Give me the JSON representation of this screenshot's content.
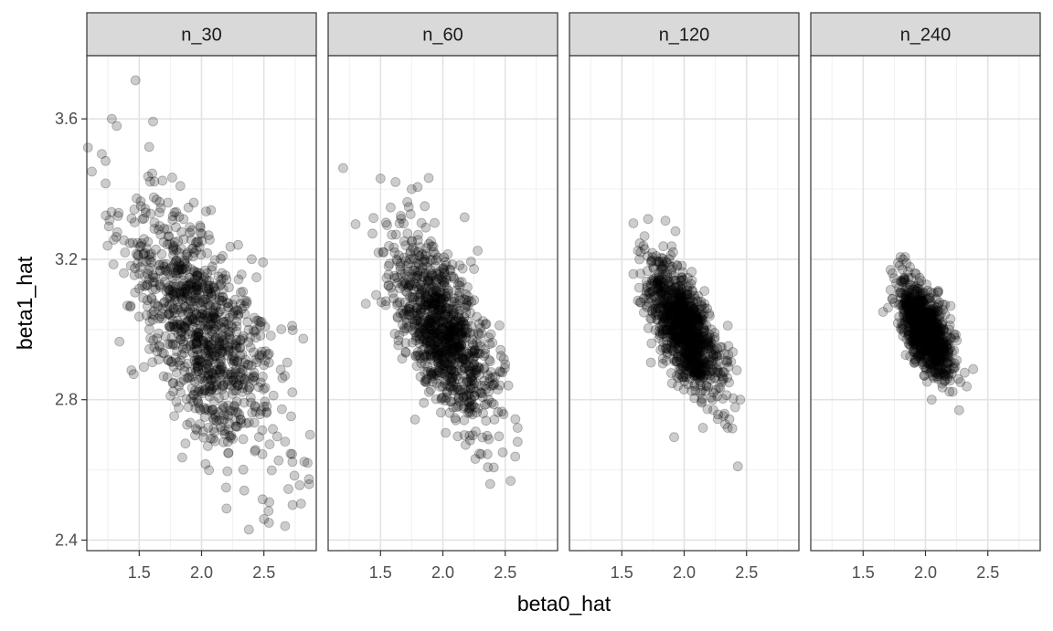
{
  "chart_data": {
    "type": "scatter",
    "xlabel": "beta0_hat",
    "ylabel": "beta1_hat",
    "xlim": [
      1.08,
      2.92
    ],
    "ylim": [
      2.37,
      3.78
    ],
    "x_ticks": [
      1.5,
      2.0,
      2.5
    ],
    "x_tick_labels": [
      "1.5",
      "2.0",
      "2.5"
    ],
    "y_ticks": [
      2.4,
      2.8,
      3.2,
      3.6
    ],
    "y_tick_labels": [
      "2.4",
      "2.8",
      "3.2",
      "3.6"
    ],
    "grid": true,
    "point_color": "#000000",
    "point_alpha": 0.2,
    "facet_strip_color": "#d9d9d9",
    "panels": [
      {
        "label": "n_30",
        "points_per_panel": 1000,
        "distribution": {
          "mean_x": 2.0,
          "mean_y": 3.0,
          "sd_x": 0.29,
          "sd_y": 0.18,
          "correlation": -0.62
        },
        "notable_points": [
          [
            1.47,
            3.71
          ],
          [
            1.28,
            3.6
          ],
          [
            1.32,
            3.58
          ],
          [
            1.12,
            3.45
          ],
          [
            1.2,
            3.5
          ],
          [
            1.23,
            3.48
          ],
          [
            1.58,
            3.52
          ],
          [
            2.38,
            2.43
          ],
          [
            2.67,
            2.44
          ],
          [
            2.73,
            2.5
          ],
          [
            2.85,
            2.62
          ],
          [
            2.5,
            2.46
          ],
          [
            2.2,
            2.49
          ],
          [
            2.87,
            2.7
          ]
        ]
      },
      {
        "label": "n_60",
        "points_per_panel": 1000,
        "distribution": {
          "mean_x": 2.0,
          "mean_y": 3.0,
          "sd_x": 0.2,
          "sd_y": 0.13,
          "correlation": -0.62
        },
        "notable_points": [
          [
            1.2,
            3.46
          ],
          [
            1.5,
            3.43
          ],
          [
            1.62,
            3.42
          ],
          [
            1.75,
            3.4
          ],
          [
            1.3,
            3.3
          ],
          [
            2.38,
            2.56
          ],
          [
            2.6,
            2.68
          ],
          [
            2.6,
            2.72
          ],
          [
            2.48,
            2.65
          ]
        ]
      },
      {
        "label": "n_120",
        "points_per_panel": 1000,
        "distribution": {
          "mean_x": 2.0,
          "mean_y": 3.0,
          "sd_x": 0.14,
          "sd_y": 0.09,
          "correlation": -0.62
        },
        "notable_points": [
          [
            1.85,
            3.31
          ],
          [
            1.93,
            3.28
          ],
          [
            1.65,
            3.22
          ],
          [
            2.43,
            2.61
          ],
          [
            2.15,
            2.72
          ],
          [
            2.35,
            2.72
          ],
          [
            2.45,
            2.8
          ]
        ]
      },
      {
        "label": "n_240",
        "points_per_panel": 1000,
        "distribution": {
          "mean_x": 2.0,
          "mean_y": 3.0,
          "sd_x": 0.1,
          "sd_y": 0.065,
          "correlation": -0.62
        },
        "notable_points": [
          [
            1.78,
            3.19
          ],
          [
            1.82,
            3.2
          ],
          [
            1.72,
            3.17
          ],
          [
            2.27,
            2.77
          ],
          [
            2.05,
            2.8
          ],
          [
            2.28,
            2.85
          ]
        ]
      }
    ]
  }
}
